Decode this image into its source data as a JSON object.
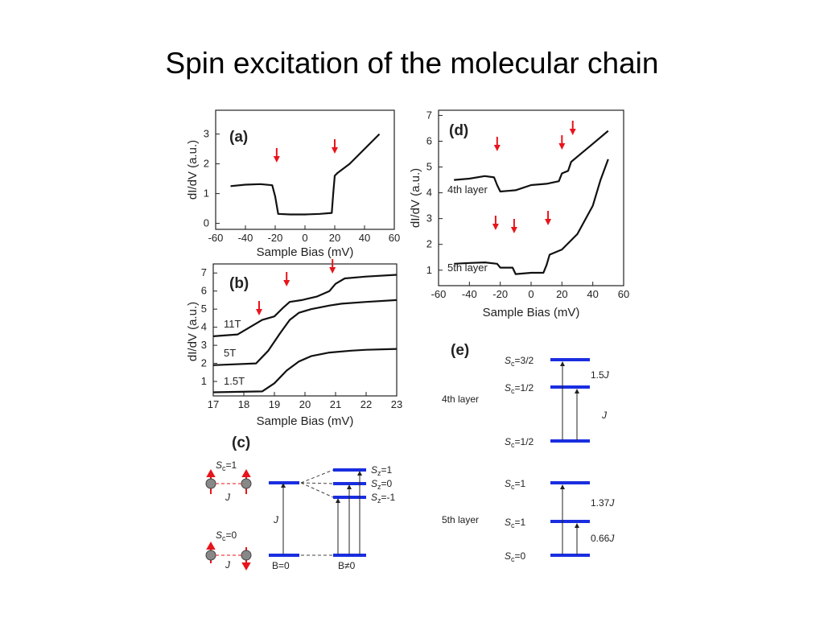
{
  "title": "Spin excitation of the molecular chain",
  "panel_a": {
    "label": "(a)",
    "xlabel": "Sample Bias (mV)",
    "ylabel": "dI/dV (a.u.)",
    "xticks": [
      "-60",
      "-40",
      "-20",
      "0",
      "20",
      "40",
      "60"
    ],
    "yticks": [
      "0",
      "1",
      "2",
      "3"
    ]
  },
  "panel_b": {
    "label": "(b)",
    "xlabel": "Sample Bias (mV)",
    "ylabel": "dI/dV (a.u.)",
    "xticks": [
      "17",
      "18",
      "19",
      "20",
      "21",
      "22",
      "23"
    ],
    "yticks": [
      "1",
      "2",
      "3",
      "4",
      "5",
      "6",
      "7"
    ],
    "series": [
      "11T",
      "5T",
      "1.5T"
    ]
  },
  "panel_c": {
    "label": "(c)",
    "sc1": "S",
    "sc1_sub": "c",
    "sc1_val": "=1",
    "sc0": "S",
    "sc0_sub": "c",
    "sc0_val": "=0",
    "j_left_top": "J",
    "j_left_bottom": "J",
    "j_mid": "J",
    "sz_plus": "=1",
    "sz_zero": "=0",
    "sz_minus": "=-1",
    "sz_sym": "S",
    "sz_sub": "z",
    "b_zero": "B=0",
    "b_nonzero": "B≠0"
  },
  "panel_d": {
    "label": "(d)",
    "xlabel": "Sample Bias (mV)",
    "ylabel": "dI/dV (a.u.)",
    "xticks": [
      "-60",
      "-40",
      "-20",
      "0",
      "20",
      "40",
      "60"
    ],
    "yticks": [
      "1",
      "2",
      "3",
      "4",
      "5",
      "6",
      "7"
    ],
    "series": [
      "4th layer",
      "5th layer"
    ]
  },
  "panel_e": {
    "label": "(e)",
    "layer4": "4th layer",
    "layer5": "5th layer",
    "s32": "=3/2",
    "s12a": "=1/2",
    "s12b": "=1/2",
    "s1a": "=1",
    "s1b": "=1",
    "s0": "=0",
    "gap_15j": "1.5",
    "gap_j": "J",
    "gap_137j": "1.37",
    "gap_066j": "0.66",
    "jsym": "J",
    "s": "S",
    "sub": "c"
  },
  "chart_data": [
    {
      "type": "line",
      "panel": "a",
      "xlabel": "Sample Bias (mV)",
      "ylabel": "dI/dV (a.u.)",
      "xlim": [
        -60,
        60
      ],
      "ylim": [
        -0.2,
        3.8
      ],
      "series": [
        {
          "x": [
            -50,
            -40,
            -30,
            -22,
            -20,
            -18,
            -10,
            0,
            10,
            18,
            19,
            20,
            22,
            30,
            40,
            50
          ],
          "y": [
            1.25,
            1.3,
            1.32,
            1.28,
            0.9,
            0.32,
            0.3,
            0.3,
            0.32,
            0.35,
            1.0,
            1.6,
            1.7,
            2.0,
            2.5,
            3.0
          ]
        }
      ],
      "arrows_x": [
        -19,
        20
      ]
    },
    {
      "type": "line",
      "panel": "b",
      "xlabel": "Sample Bias (mV)",
      "ylabel": "dI/dV (a.u.)",
      "xlim": [
        17,
        23
      ],
      "ylim": [
        0.2,
        7.5
      ],
      "series": [
        {
          "name": "11T",
          "x": [
            17,
            17.8,
            18.2,
            18.6,
            19.0,
            19.3,
            19.5,
            19.9,
            20.4,
            20.8,
            21.0,
            21.3,
            22,
            23
          ],
          "y": [
            3.5,
            3.6,
            4.0,
            4.4,
            4.6,
            5.1,
            5.4,
            5.5,
            5.7,
            6.0,
            6.4,
            6.7,
            6.8,
            6.9
          ]
        },
        {
          "name": "5T",
          "x": [
            17,
            18.4,
            18.8,
            19.2,
            19.5,
            19.8,
            20.2,
            20.8,
            21.2,
            22,
            23
          ],
          "y": [
            1.9,
            2.0,
            2.7,
            3.7,
            4.4,
            4.8,
            5.0,
            5.2,
            5.3,
            5.4,
            5.5
          ]
        },
        {
          "name": "1.5T",
          "x": [
            17,
            18.6,
            19.0,
            19.4,
            19.8,
            20.2,
            20.8,
            21.5,
            22,
            23
          ],
          "y": [
            0.4,
            0.45,
            0.9,
            1.6,
            2.1,
            2.4,
            2.6,
            2.7,
            2.75,
            2.8
          ]
        }
      ],
      "arrows_x": [
        18.5,
        19.4,
        20.9
      ]
    },
    {
      "type": "line",
      "panel": "d",
      "xlabel": "Sample Bias (mV)",
      "ylabel": "dI/dV (a.u.)",
      "xlim": [
        -60,
        60
      ],
      "ylim": [
        0.4,
        7.2
      ],
      "series": [
        {
          "name": "4th layer",
          "x": [
            -50,
            -40,
            -30,
            -24,
            -22,
            -20,
            -10,
            0,
            10,
            18,
            20,
            24,
            26,
            30,
            40,
            50
          ],
          "y": [
            4.5,
            4.55,
            4.65,
            4.6,
            4.3,
            4.05,
            4.1,
            4.3,
            4.35,
            4.45,
            4.75,
            4.85,
            5.2,
            5.4,
            5.9,
            6.4
          ]
        },
        {
          "name": "5th layer",
          "x": [
            -50,
            -40,
            -30,
            -22,
            -20,
            -12,
            -10,
            0,
            8,
            10,
            12,
            20,
            30,
            40,
            45,
            50
          ],
          "y": [
            1.25,
            1.28,
            1.3,
            1.25,
            1.1,
            1.1,
            0.85,
            0.9,
            0.9,
            1.2,
            1.6,
            1.8,
            2.4,
            3.5,
            4.5,
            5.3
          ]
        }
      ],
      "arrows_x": [
        -22,
        20,
        27,
        -23,
        -11,
        11
      ]
    },
    {
      "type": "diagram",
      "panel": "e",
      "levels_4th_layer": [
        "Sc=1/2",
        "Sc=1/2",
        "Sc=3/2"
      ],
      "gaps_4th_layer": [
        "J",
        "1.5J"
      ],
      "levels_5th_layer": [
        "Sc=0",
        "Sc=1",
        "Sc=1"
      ],
      "gaps_5th_layer": [
        "0.66J",
        "1.37J"
      ]
    }
  ]
}
